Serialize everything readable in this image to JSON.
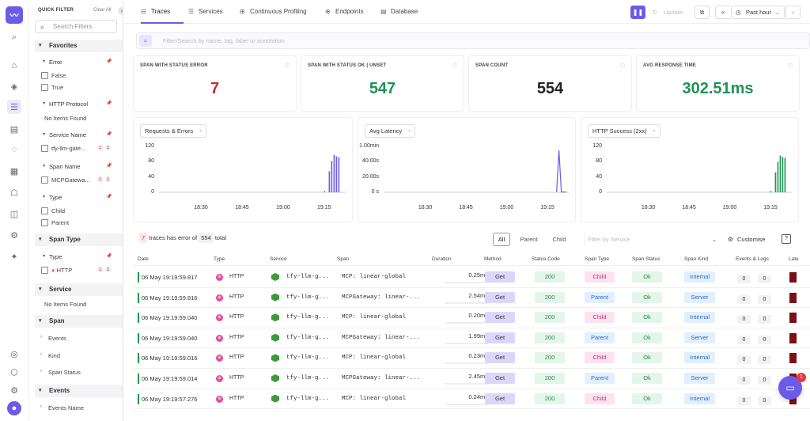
{
  "filters": {
    "header": "QUICK FILTER",
    "clear_all": "Clear All",
    "search_placeholder": "Search Filters",
    "favorites": "Favorites",
    "error": {
      "label": "Error",
      "options": [
        "False",
        "True"
      ]
    },
    "http_protocol": {
      "label": "HTTP Protocol",
      "empty": "No Items Found"
    },
    "service_name": {
      "label": "Service Name",
      "option": "tfy-llm-gate...",
      "count_error": "1",
      "count_total": "1"
    },
    "span_name": {
      "label": "Span Name",
      "option": "MCPGatewa...",
      "count_error": "1",
      "count_total": "1"
    },
    "type": {
      "label": "Type",
      "options": [
        "Child",
        "Parent"
      ]
    },
    "span_type_group": "Span Type",
    "span_type_sub": {
      "label": "Type",
      "option": "HTTP",
      "count_error": "1",
      "count_total": "1"
    },
    "service_group": "Service",
    "service_empty": "No Items Found",
    "span_group": "Span",
    "span_items": [
      "Events",
      "Kind",
      "Span Status"
    ],
    "events_group": "Events",
    "events_items": [
      "Events Name"
    ]
  },
  "tabs": [
    "Traces",
    "Services",
    "Continuous Profiling",
    "Endpoints",
    "Database"
  ],
  "toolbar": {
    "update_label": "Update",
    "time_range": "Past hour"
  },
  "query": {
    "placeholder": "Filter/Search by name, tag, label or annotation"
  },
  "stats": [
    {
      "label": "SPAN WITH STATUS ERROR",
      "value": "7",
      "color": "#c0312f"
    },
    {
      "label": "SPAN WITH STATUS OK | UNSET",
      "value": "547",
      "color": "#1f9254"
    },
    {
      "label": "SPAN COUNT",
      "value": "554",
      "color": "#222222"
    },
    {
      "label": "AVG RESPONSE TIME",
      "value": "302.51ms",
      "color": "#1f9254"
    }
  ],
  "chart_data": [
    {
      "type": "bar",
      "title": "Requests & Errors",
      "ylim": [
        0,
        120
      ],
      "yticks": [
        "120",
        "80",
        "40",
        "0"
      ],
      "xticks": [
        "18:30",
        "18:45",
        "19:00",
        "19:15"
      ],
      "color": "#6b5ce7",
      "x": [
        "19:15",
        "19:16",
        "19:17",
        "19:18",
        "19:19"
      ],
      "values": [
        55,
        82,
        98,
        94,
        92
      ]
    },
    {
      "type": "line",
      "title": "Avg Latency",
      "yticks": [
        "1.00min",
        "40.00s",
        "20.00s",
        "0 s"
      ],
      "xticks": [
        "18:30",
        "18:45",
        "19:00",
        "19:15"
      ],
      "color": "#6b5ce7",
      "x": [
        "19:15",
        "19:16",
        "19:17",
        "19:18",
        "19:19"
      ],
      "values_s": [
        0.3,
        55,
        0.5,
        0.3,
        0.3
      ]
    },
    {
      "type": "bar",
      "title": "HTTP Success (2xx)",
      "ylim": [
        0,
        120
      ],
      "yticks": [
        "120",
        "80",
        "40",
        "0"
      ],
      "xticks": [
        "18:30",
        "18:45",
        "19:00",
        "19:15"
      ],
      "color": "#1f9254",
      "x": [
        "19:15",
        "19:16",
        "19:17",
        "19:18",
        "19:19"
      ],
      "values": [
        52,
        80,
        96,
        92,
        90
      ]
    }
  ],
  "summary": {
    "error_count": "7",
    "mid_text": "traces has error of",
    "total": "554",
    "total_suffix": "total"
  },
  "segments": [
    "All",
    "Parent",
    "Child"
  ],
  "service_filter_placeholder": "Filter by Service",
  "customise_label": "Customise",
  "help_label": "?",
  "columns": [
    "Date",
    "Type",
    "Service",
    "Span",
    "Duration",
    "Method",
    "Status Code",
    "Span Type",
    "Span Status",
    "Span Kind",
    "Events & Logs",
    "Late"
  ],
  "rows": [
    {
      "date": "06 May 19:19:59.817",
      "type": "HTTP",
      "service": "tfy-llm-g...",
      "span": "MCP: linear-global",
      "duration": "0.25ms",
      "method": "Get",
      "status_code": "200",
      "span_type": "Child",
      "span_status": "Ok",
      "span_kind": "Internal",
      "events": "0",
      "logs": "0"
    },
    {
      "date": "06 May 19:19:59.816",
      "type": "HTTP",
      "service": "tfy-llm-g...",
      "span": "MCPGateway: linear-...",
      "duration": "2.54ms",
      "method": "Get",
      "status_code": "200",
      "span_type": "Parent",
      "span_status": "Ok",
      "span_kind": "Server",
      "events": "0",
      "logs": "0"
    },
    {
      "date": "06 May 19:19:59.040",
      "type": "HTTP",
      "service": "tfy-llm-g...",
      "span": "MCP: linear-global",
      "duration": "0.20ms",
      "method": "Get",
      "status_code": "200",
      "span_type": "Child",
      "span_status": "Ok",
      "span_kind": "Internal",
      "events": "0",
      "logs": "0"
    },
    {
      "date": "06 May 19:19:59.040",
      "type": "HTTP",
      "service": "tfy-llm-g...",
      "span": "MCPGateway: linear-...",
      "duration": "1.99ms",
      "method": "Get",
      "status_code": "200",
      "span_type": "Parent",
      "span_status": "Ok",
      "span_kind": "Server",
      "events": "0",
      "logs": "0"
    },
    {
      "date": "06 May 19:19:59.016",
      "type": "HTTP",
      "service": "tfy-llm-g...",
      "span": "MCP: linear-global",
      "duration": "0.23ms",
      "method": "Get",
      "status_code": "200",
      "span_type": "Child",
      "span_status": "Ok",
      "span_kind": "Internal",
      "events": "0",
      "logs": "0"
    },
    {
      "date": "06 May 19:19:59.014",
      "type": "HTTP",
      "service": "tfy-llm-g...",
      "span": "MCPGateway: linear-...",
      "duration": "2.45ms",
      "method": "Get",
      "status_code": "200",
      "span_type": "Parent",
      "span_status": "Ok",
      "span_kind": "Server",
      "events": "0",
      "logs": "0"
    },
    {
      "date": "06 May 19:19:57.276",
      "type": "HTTP",
      "service": "tfy-llm-g...",
      "span": "MCP: linear-global",
      "duration": "0.24ms",
      "method": "Get",
      "status_code": "200",
      "span_type": "Child",
      "span_status": "Ok",
      "span_kind": "Internal",
      "events": "0",
      "logs": "0"
    }
  ],
  "chat_badge": "1",
  "icons": {
    "rail": [
      "search-icon",
      "home-icon",
      "layers-icon",
      "traces-icon",
      "document-icon",
      "alert-icon",
      "dashboard-icon",
      "robot-icon",
      "chart-icon",
      "settings-icon",
      "sparkle-icon",
      "help-icon",
      "box-icon",
      "gear-icon",
      "avatar-icon"
    ]
  }
}
